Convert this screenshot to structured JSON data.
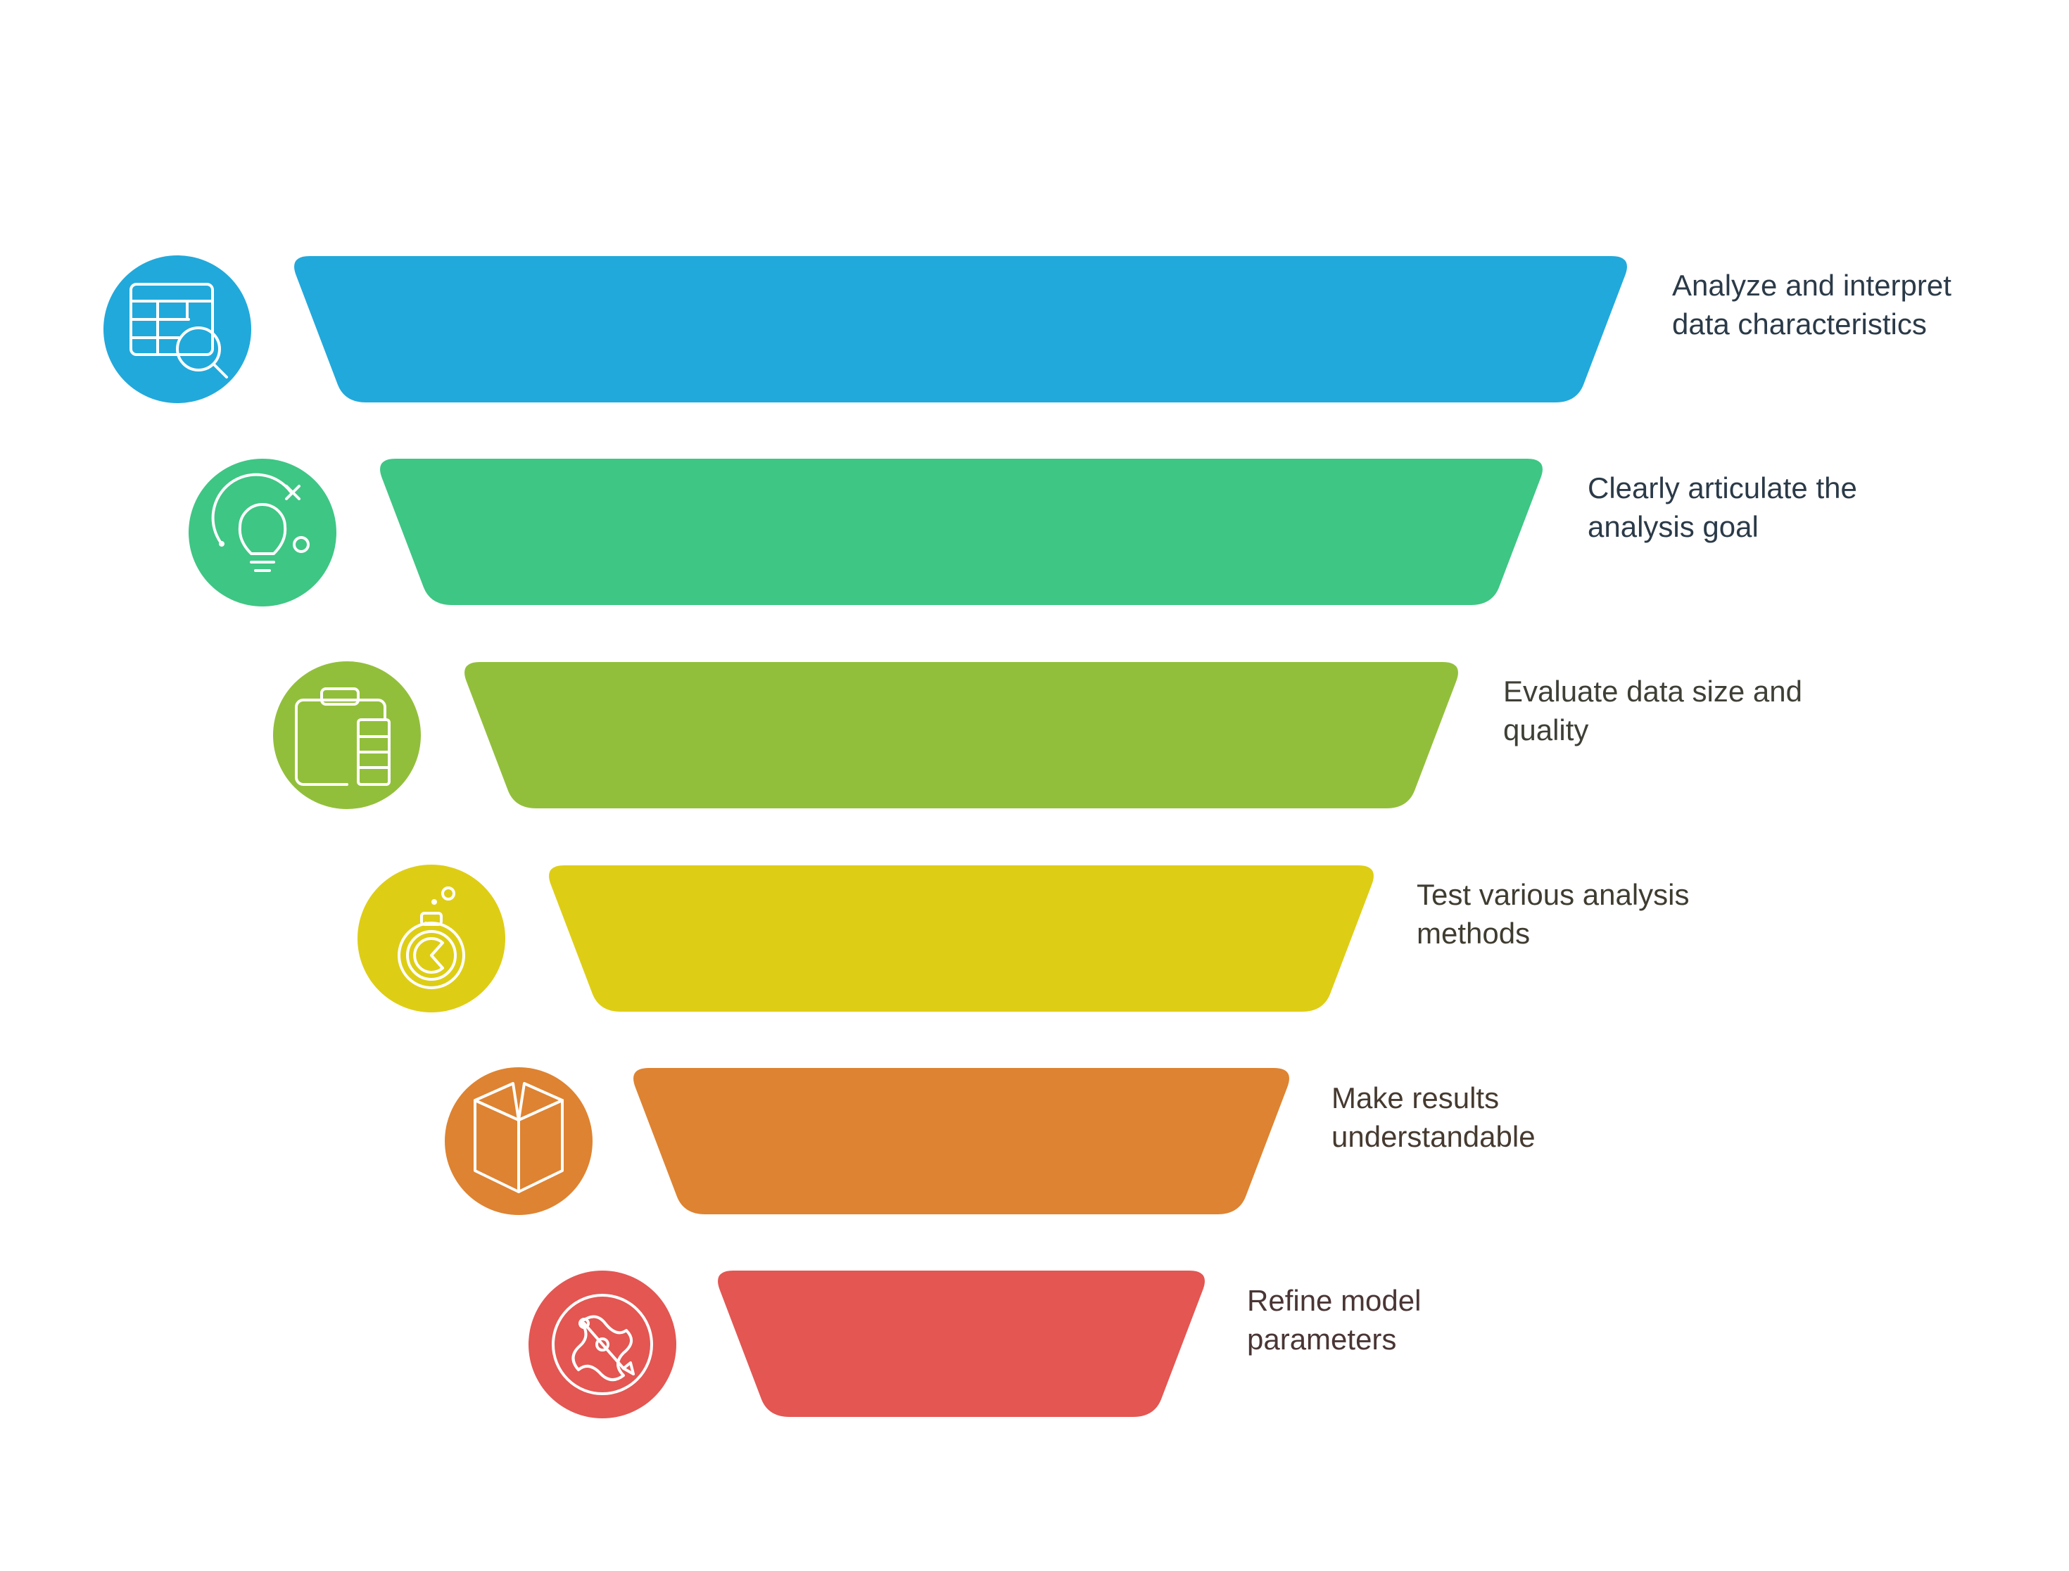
{
  "funnel": {
    "stages": [
      {
        "label_lines": [
          "Analyze and interpret",
          "data characteristics"
        ],
        "color": "#21a9db",
        "text_color": "#2b3a48",
        "icon": "table-search-icon"
      },
      {
        "label_lines": [
          "Clearly articulate the",
          "analysis goal"
        ],
        "color": "#3ec684",
        "text_color": "#2b3a48",
        "icon": "lightbulb-icon"
      },
      {
        "label_lines": [
          "Evaluate data size and",
          "quality"
        ],
        "color": "#92bf3b",
        "text_color": "#3f3f36",
        "icon": "clipboard-data-icon"
      },
      {
        "label_lines": [
          "Test various analysis",
          "methods"
        ],
        "color": "#decd15",
        "text_color": "#3f3c30",
        "icon": "flask-test-icon"
      },
      {
        "label_lines": [
          "Make results",
          "understandable"
        ],
        "color": "#de8331",
        "text_color": "#463a30",
        "icon": "open-book-icon"
      },
      {
        "label_lines": [
          "Refine model",
          "parameters"
        ],
        "color": "#e35652",
        "text_color": "#4a3535",
        "icon": "parameter-tuning-icon"
      }
    ]
  }
}
